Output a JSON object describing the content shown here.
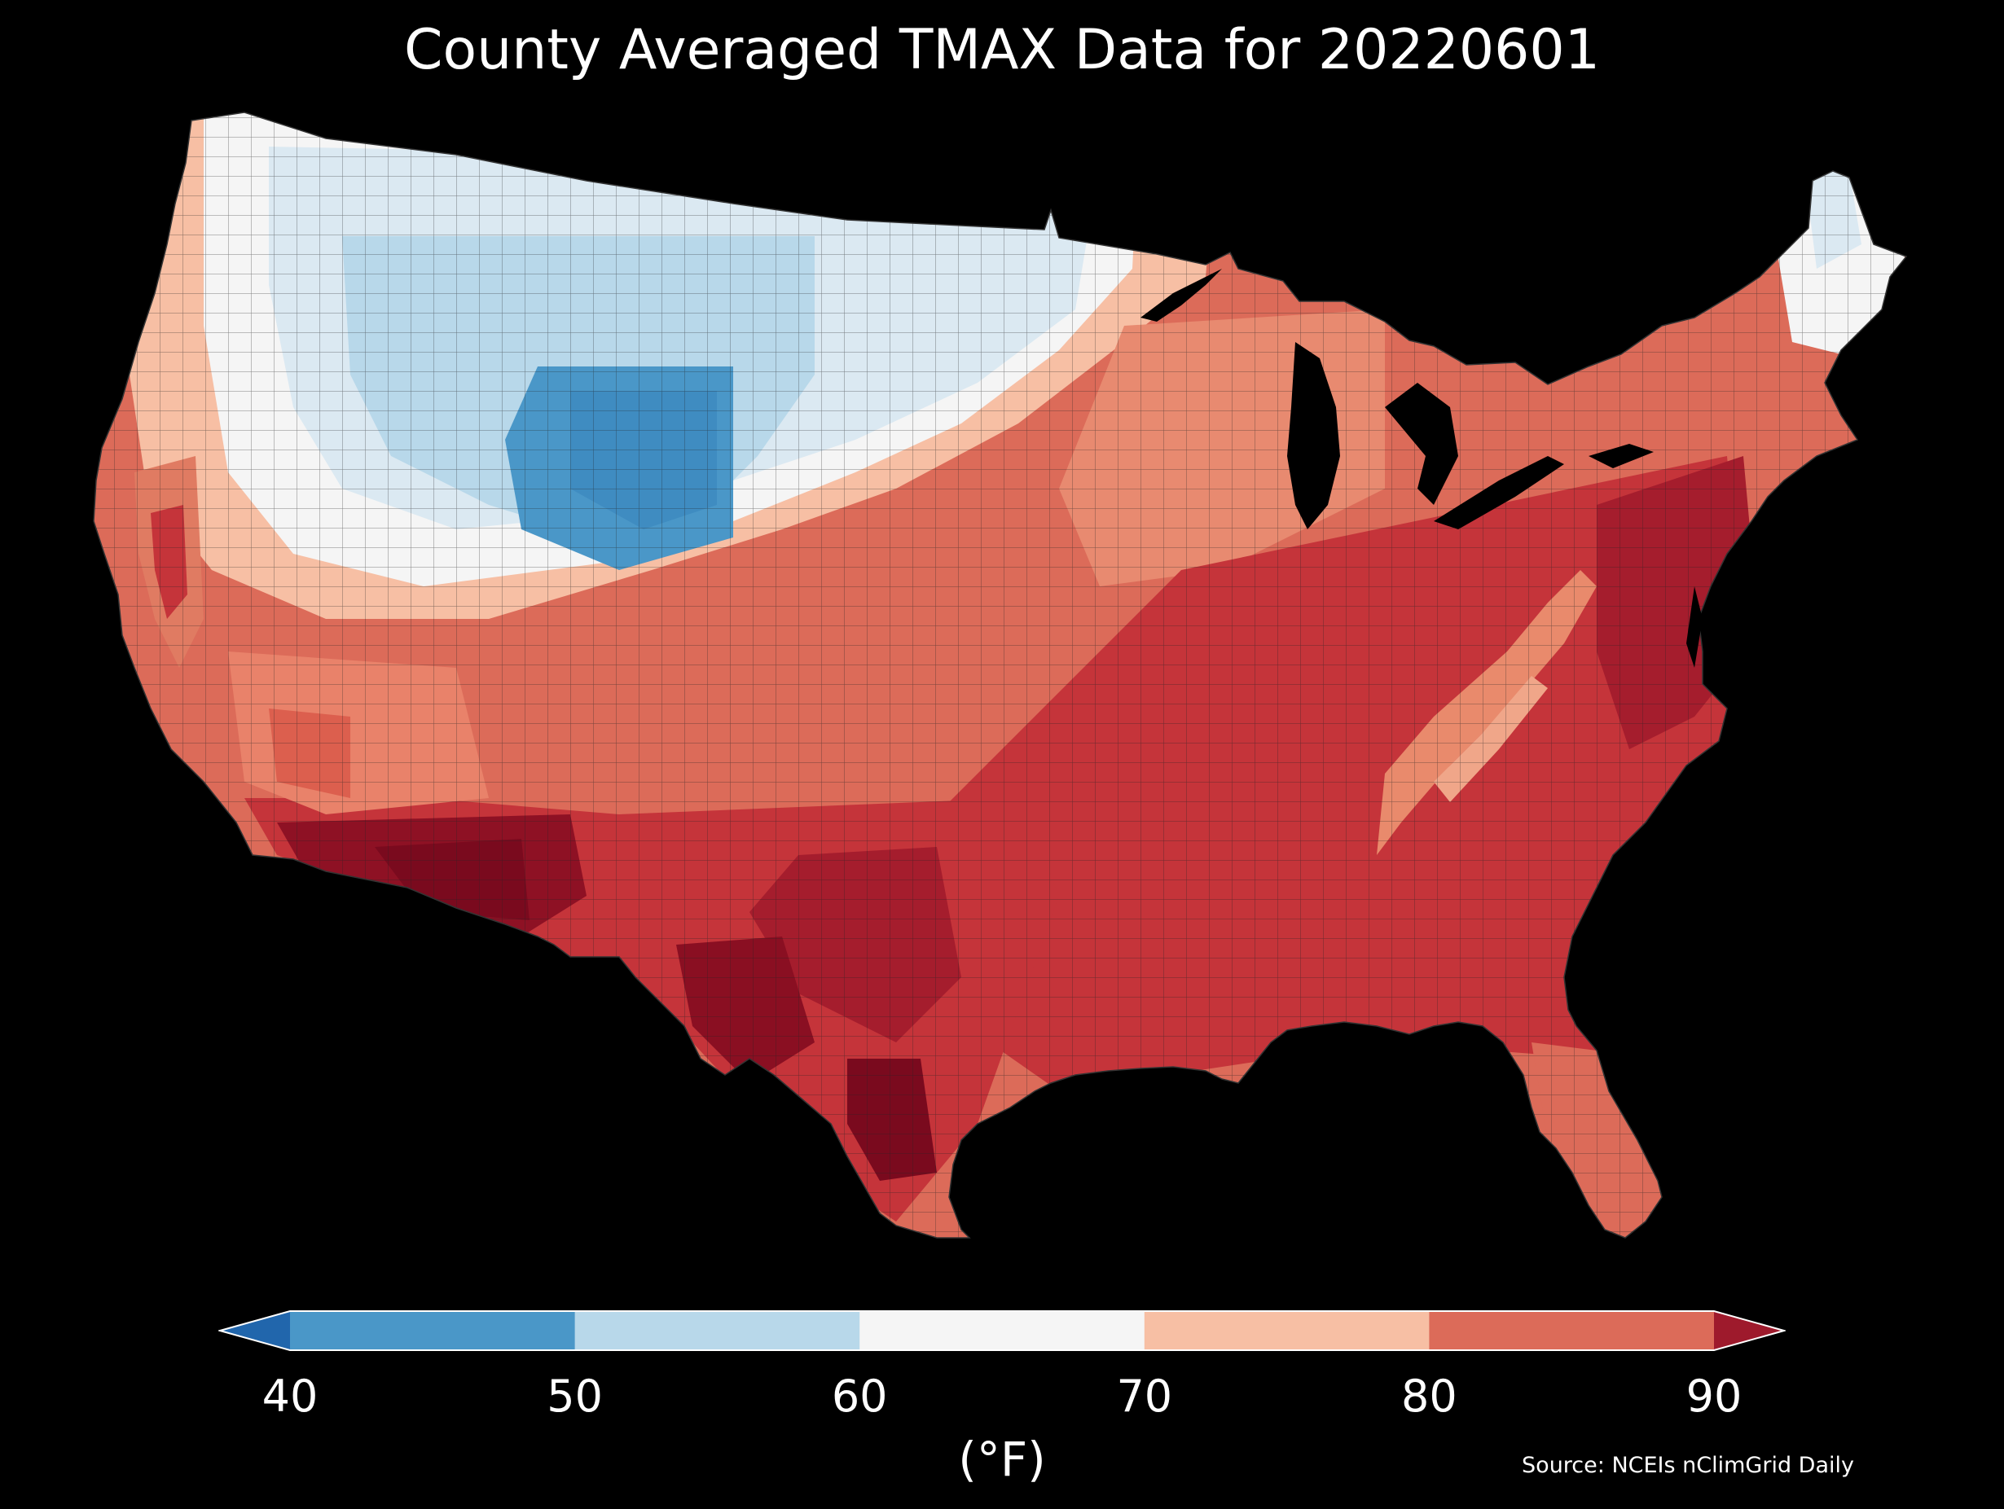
{
  "title": "County Averaged TMAX Data for 20220601",
  "colorbar": {
    "unit_label": "(°F)",
    "ticks": [
      "40",
      "50",
      "60",
      "70",
      "80",
      "90"
    ],
    "bins": [
      {
        "range": "<40",
        "color": "#2166ac",
        "type": "extend-low"
      },
      {
        "range": "40-50",
        "color": "#4a97c8"
      },
      {
        "range": "50-60",
        "color": "#b8d8ea"
      },
      {
        "range": "60-70",
        "color": "#f5f5f5"
      },
      {
        "range": "70-80",
        "color": "#f7bfa4"
      },
      {
        "range": "80-90",
        "color": "#dc6b59"
      },
      {
        "range": ">90",
        "color": "#9e1a2c",
        "type": "extend-high"
      }
    ]
  },
  "source": "Source: NCEIs nClimGrid Daily",
  "map": {
    "region": "Contiguous United States counties",
    "variable": "TMAX",
    "date": "20220601",
    "regional_pattern": [
      {
        "region": "Central Rockies / Wyoming",
        "range": "40-50"
      },
      {
        "region": "Montana / Idaho / Colorado / Nebraska",
        "range": "50-60"
      },
      {
        "region": "Northern Plains / Nevada / Oregon / Maine",
        "range": "60-70"
      },
      {
        "region": "Pacific Coast / Great Lakes / Appalachians",
        "range": "70-80"
      },
      {
        "region": "Southeast / Mid-Atlantic / Southern Plains",
        "range": "80-90"
      },
      {
        "region": "Southern Arizona / West Texas / South Texas",
        "range": ">90"
      }
    ]
  }
}
